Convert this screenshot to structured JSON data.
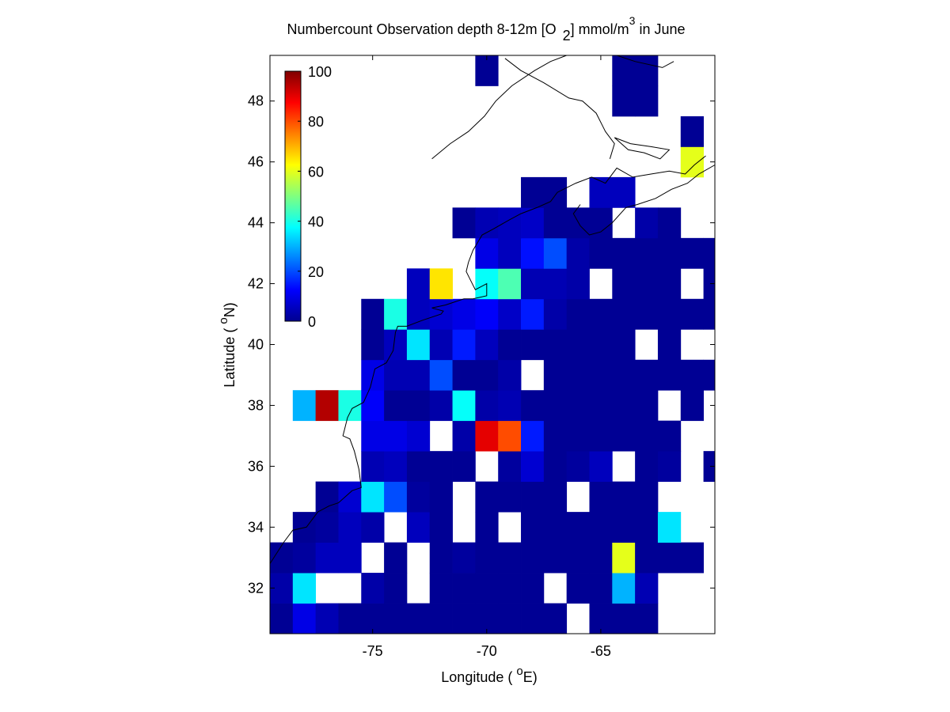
{
  "chart_data": {
    "type": "heatmap",
    "title": {
      "prefix": "Numbercount Observation depth 8-12m [O",
      "sub": "2",
      "middle": "] mmol/m",
      "sup": "3",
      "suffix": " in June"
    },
    "xlabel": {
      "main": "Longitude ( ",
      "sup": "o",
      "end": "E)"
    },
    "ylabel": {
      "main": "Latitude ( ",
      "sup": "o",
      "end": "N)"
    },
    "xlim": [
      -79.5,
      -60.0
    ],
    "ylim": [
      30.5,
      49.5
    ],
    "x_ticks": [
      -75,
      -70,
      -65
    ],
    "x_tick_labels": [
      "-75",
      "-70",
      "-65"
    ],
    "y_ticks": [
      32,
      34,
      36,
      38,
      40,
      42,
      44,
      46,
      48
    ],
    "y_tick_labels": [
      "32",
      "34",
      "36",
      "38",
      "40",
      "42",
      "44",
      "46",
      "48"
    ],
    "cell_size_deg": 1,
    "colorbar": {
      "colormap": "jet",
      "min": 0,
      "max": 100,
      "ticks": [
        0,
        20,
        40,
        60,
        80,
        100
      ],
      "tick_labels": [
        "0",
        "20",
        "40",
        "60",
        "80",
        "100"
      ],
      "location": "inside top-left"
    },
    "cell_lon_west": -79.5,
    "cell_lat_south": 30.5,
    "cell_columns": 20,
    "cell_rows": 19,
    "cell_values_south_to_north": [
      [
        2,
        10,
        5,
        2,
        2,
        2,
        2,
        2,
        2,
        2,
        2,
        2,
        2,
        null,
        2,
        2,
        2,
        null,
        null,
        null
      ],
      [
        4,
        35,
        null,
        null,
        4,
        2,
        null,
        2,
        2,
        2,
        2,
        2,
        null,
        2,
        2,
        30,
        5,
        null,
        null,
        null
      ],
      [
        2,
        3,
        6,
        6,
        null,
        2,
        null,
        2,
        3,
        2,
        2,
        2,
        2,
        2,
        2,
        60,
        2,
        2,
        2,
        null
      ],
      [
        null,
        2,
        3,
        6,
        4,
        null,
        6,
        2,
        null,
        2,
        null,
        2,
        2,
        2,
        2,
        2,
        2,
        35,
        null,
        null
      ],
      [
        null,
        null,
        2,
        8,
        35,
        20,
        3,
        2,
        null,
        2,
        2,
        2,
        2,
        null,
        2,
        2,
        2,
        null,
        null,
        null
      ],
      [
        null,
        null,
        null,
        null,
        5,
        6,
        2,
        2,
        2,
        null,
        3,
        8,
        2,
        3,
        6,
        null,
        2,
        3,
        null,
        2
      ],
      [
        null,
        null,
        null,
        null,
        10,
        10,
        8,
        null,
        4,
        90,
        80,
        15,
        2,
        2,
        2,
        2,
        2,
        2,
        null,
        null
      ],
      [
        null,
        30,
        95,
        40,
        12,
        2,
        2,
        4,
        38,
        4,
        5,
        2,
        2,
        2,
        2,
        2,
        2,
        null,
        2,
        null
      ],
      [
        null,
        null,
        null,
        null,
        10,
        5,
        5,
        20,
        2,
        2,
        4,
        null,
        2,
        2,
        2,
        2,
        2,
        2,
        2,
        2
      ],
      [
        null,
        null,
        null,
        null,
        2,
        6,
        35,
        5,
        15,
        6,
        2,
        2,
        2,
        2,
        2,
        2,
        null,
        2,
        null,
        null
      ],
      [
        null,
        null,
        null,
        null,
        2,
        40,
        6,
        8,
        10,
        12,
        7,
        15,
        4,
        2,
        2,
        2,
        2,
        2,
        2,
        2
      ],
      [
        null,
        null,
        null,
        null,
        null,
        null,
        6,
        65,
        null,
        38,
        45,
        5,
        5,
        4,
        null,
        2,
        2,
        2,
        null,
        2
      ],
      [
        null,
        null,
        null,
        null,
        null,
        null,
        null,
        null,
        null,
        10,
        6,
        14,
        20,
        4,
        2,
        2,
        2,
        2,
        2,
        2
      ],
      [
        null,
        null,
        null,
        null,
        null,
        null,
        null,
        null,
        2,
        5,
        6,
        7,
        2,
        2,
        2,
        null,
        4,
        2,
        null,
        null
      ],
      [
        null,
        null,
        null,
        null,
        null,
        null,
        null,
        null,
        null,
        null,
        null,
        2,
        2,
        null,
        6,
        6,
        null,
        null,
        null,
        null
      ],
      [
        null,
        null,
        null,
        null,
        null,
        null,
        null,
        null,
        null,
        null,
        null,
        null,
        null,
        null,
        null,
        null,
        null,
        null,
        60,
        null
      ],
      [
        null,
        null,
        null,
        null,
        null,
        null,
        null,
        null,
        null,
        null,
        null,
        null,
        null,
        null,
        null,
        null,
        null,
        null,
        2,
        null
      ],
      [
        null,
        null,
        null,
        null,
        null,
        null,
        null,
        null,
        null,
        null,
        null,
        null,
        null,
        null,
        null,
        2,
        2,
        null,
        null,
        null
      ],
      [
        null,
        null,
        null,
        null,
        null,
        null,
        null,
        null,
        null,
        2,
        null,
        null,
        null,
        null,
        null,
        2,
        2,
        null,
        null,
        null
      ]
    ],
    "coastline_lonlat": [
      [
        -79.5,
        32.8
      ],
      [
        -78.9,
        33.5
      ],
      [
        -78.5,
        33.9
      ],
      [
        -77.9,
        34.0
      ],
      [
        -77.4,
        34.5
      ],
      [
        -76.9,
        34.7
      ],
      [
        -76.5,
        34.8
      ],
      [
        -75.9,
        35.2
      ],
      [
        -75.5,
        35.3
      ],
      [
        -75.6,
        35.9
      ],
      [
        -75.8,
        36.5
      ],
      [
        -76.0,
        36.9
      ],
      [
        -76.3,
        37.0
      ],
      [
        -76.1,
        37.6
      ],
      [
        -75.9,
        37.9
      ],
      [
        -75.4,
        38.1
      ],
      [
        -75.1,
        38.6
      ],
      [
        -75.0,
        38.9
      ],
      [
        -74.9,
        39.2
      ],
      [
        -74.4,
        39.4
      ],
      [
        -74.1,
        39.8
      ],
      [
        -74.0,
        40.4
      ],
      [
        -73.9,
        40.6
      ],
      [
        -73.5,
        40.6
      ],
      [
        -72.8,
        40.8
      ],
      [
        -72.0,
        41.0
      ],
      [
        -71.9,
        41.1
      ],
      [
        -72.4,
        41.2
      ],
      [
        -71.8,
        41.3
      ],
      [
        -71.4,
        41.4
      ],
      [
        -71.0,
        41.5
      ],
      [
        -70.6,
        41.5
      ],
      [
        -70.0,
        41.6
      ],
      [
        -70.0,
        42.0
      ],
      [
        -70.5,
        41.8
      ],
      [
        -70.7,
        42.1
      ],
      [
        -70.9,
        42.4
      ],
      [
        -70.8,
        42.7
      ],
      [
        -70.6,
        43.1
      ],
      [
        -70.2,
        43.6
      ],
      [
        -69.7,
        43.8
      ],
      [
        -69.0,
        44.1
      ],
      [
        -68.5,
        44.3
      ],
      [
        -67.8,
        44.5
      ],
      [
        -67.2,
        44.7
      ],
      [
        -66.9,
        45.0
      ],
      [
        -66.1,
        45.3
      ],
      [
        -65.4,
        45.5
      ],
      [
        -64.8,
        45.3
      ],
      [
        -64.3,
        45.8
      ],
      [
        -63.6,
        45.5
      ],
      [
        -62.8,
        45.6
      ],
      [
        -62.0,
        45.7
      ],
      [
        -61.3,
        45.6
      ],
      [
        -60.9,
        45.9
      ],
      [
        -60.4,
        46.2
      ]
    ],
    "coastline_nova_scotia_lonlat": [
      [
        -65.9,
        44.6
      ],
      [
        -66.2,
        44.3
      ],
      [
        -65.9,
        43.9
      ],
      [
        -65.5,
        43.6
      ],
      [
        -65.0,
        43.7
      ],
      [
        -64.5,
        44.0
      ],
      [
        -63.9,
        44.5
      ],
      [
        -63.4,
        44.6
      ],
      [
        -62.6,
        44.8
      ],
      [
        -61.9,
        45.1
      ],
      [
        -61.2,
        45.3
      ],
      [
        -60.7,
        45.6
      ],
      [
        -60.0,
        45.9
      ]
    ],
    "coastline_gulf_lonlat": [
      [
        -64.6,
        46.1
      ],
      [
        -64.4,
        46.6
      ],
      [
        -64.8,
        47.0
      ],
      [
        -65.2,
        47.6
      ],
      [
        -65.8,
        48.0
      ],
      [
        -66.4,
        48.1
      ],
      [
        -67.5,
        48.6
      ],
      [
        -68.5,
        49.0
      ],
      [
        -69.2,
        49.4
      ]
    ],
    "coastline_north_shore_lonlat": [
      [
        -72.4,
        46.1
      ],
      [
        -71.6,
        46.6
      ],
      [
        -70.8,
        47.0
      ],
      [
        -70.1,
        47.5
      ],
      [
        -69.6,
        48.0
      ],
      [
        -68.9,
        48.5
      ],
      [
        -67.9,
        49.0
      ],
      [
        -67.2,
        49.3
      ],
      [
        -66.5,
        49.5
      ]
    ],
    "coastline_pei_lonlat": [
      [
        -64.4,
        46.8
      ],
      [
        -63.8,
        46.4
      ],
      [
        -63.1,
        46.3
      ],
      [
        -62.4,
        46.1
      ],
      [
        -62.0,
        46.4
      ],
      [
        -62.8,
        46.5
      ],
      [
        -63.7,
        46.6
      ],
      [
        -64.4,
        46.8
      ]
    ],
    "coastline_anticosti_lonlat": [
      [
        -64.3,
        49.5
      ],
      [
        -63.5,
        49.3
      ],
      [
        -62.3,
        49.1
      ],
      [
        -61.8,
        49.3
      ]
    ]
  }
}
